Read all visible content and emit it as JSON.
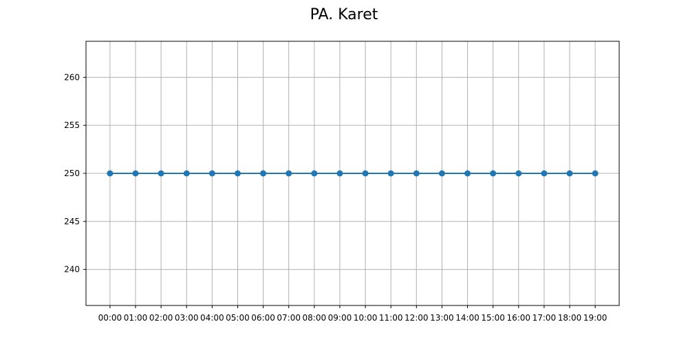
{
  "chart_data": {
    "type": "line",
    "title": "PA. Karet",
    "xlabel": "",
    "ylabel": "",
    "categories": [
      "00:00",
      "01:00",
      "02:00",
      "03:00",
      "04:00",
      "05:00",
      "06:00",
      "07:00",
      "08:00",
      "09:00",
      "10:00",
      "11:00",
      "12:00",
      "13:00",
      "14:00",
      "15:00",
      "16:00",
      "17:00",
      "18:00",
      "19:00"
    ],
    "series": [
      {
        "values": [
          250,
          250,
          250,
          250,
          250,
          250,
          250,
          250,
          250,
          250,
          250,
          250,
          250,
          250,
          250,
          250,
          250,
          250,
          250,
          250
        ],
        "color": "#1f77b4",
        "marker": "circle"
      }
    ],
    "ylim": [
      236.25,
      263.75
    ],
    "yticks": [
      240,
      245,
      250,
      255,
      260
    ],
    "grid": true,
    "legend": "none"
  }
}
